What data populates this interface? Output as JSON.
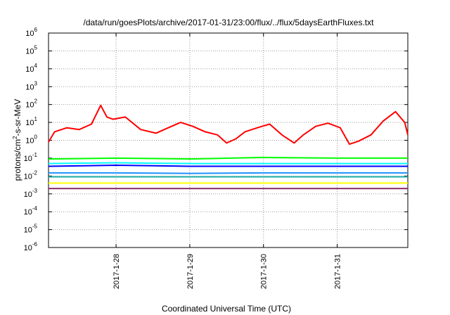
{
  "chart_data": {
    "type": "line",
    "title": "/data/run/goesPlots/archive/2017-01-31/23:00/flux/../flux/5daysEarthFluxes.txt",
    "xlabel": "Coordinated Universal Time (UTC)",
    "ylabel_parts": {
      "before": "protons/cm",
      "sup": "2",
      "after": "-s-sr-MeV"
    },
    "yscale": "log",
    "ylim": [
      1e-06,
      1000000.0
    ],
    "ytick_labels": [
      {
        "base": "10",
        "exp": "-6",
        "value": 1e-06
      },
      {
        "base": "10",
        "exp": "-5",
        "value": 1e-05
      },
      {
        "base": "10",
        "exp": "-4",
        "value": 0.0001
      },
      {
        "base": "10",
        "exp": "-3",
        "value": 0.001
      },
      {
        "base": "10",
        "exp": "-2",
        "value": 0.01
      },
      {
        "base": "10",
        "exp": "-1",
        "value": 0.1
      },
      {
        "base": "10",
        "exp": "0",
        "value": 1
      },
      {
        "base": "10",
        "exp": "1",
        "value": 10
      },
      {
        "base": "10",
        "exp": "2",
        "value": 100
      },
      {
        "base": "10",
        "exp": "3",
        "value": 1000
      },
      {
        "base": "10",
        "exp": "4",
        "value": 10000
      },
      {
        "base": "10",
        "exp": "5",
        "value": 100000
      },
      {
        "base": "10",
        "exp": "6",
        "value": 1000000
      }
    ],
    "xlim": [
      "2017-01-27 02:00",
      "2017-01-31 23:00"
    ],
    "xtick_labels": [
      {
        "label": "2017-1-28",
        "x": "2017-01-28 00:00"
      },
      {
        "label": "2017-1-29",
        "x": "2017-01-29 00:00"
      },
      {
        "label": "2017-1-30",
        "x": "2017-01-30 00:00"
      },
      {
        "label": "2017-1-31",
        "x": "2017-01-31 00:00"
      }
    ],
    "grid": true,
    "series": [
      {
        "color": "#ff0000",
        "x": [
          "2017-01-27 02:00",
          "2017-01-27 04:00",
          "2017-01-27 08:00",
          "2017-01-27 12:00",
          "2017-01-27 16:00",
          "2017-01-27 19:00",
          "2017-01-27 21:00",
          "2017-01-27 23:00",
          "2017-01-28 03:00",
          "2017-01-28 08:00",
          "2017-01-28 13:00",
          "2017-01-28 17:00",
          "2017-01-28 21:00",
          "2017-01-29 01:00",
          "2017-01-29 05:00",
          "2017-01-29 09:00",
          "2017-01-29 12:00",
          "2017-01-29 15:00",
          "2017-01-29 18:00",
          "2017-01-29 22:00",
          "2017-01-30 02:00",
          "2017-01-30 06:00",
          "2017-01-30 10:00",
          "2017-01-30 13:00",
          "2017-01-30 17:00",
          "2017-01-30 21:00",
          "2017-01-31 01:00",
          "2017-01-31 04:00",
          "2017-01-31 07:00",
          "2017-01-31 11:00",
          "2017-01-31 15:00",
          "2017-01-31 19:00",
          "2017-01-31 22:00",
          "2017-01-31 23:00"
        ],
        "values": [
          0.8,
          3,
          5,
          4,
          8,
          90,
          20,
          15,
          20,
          4,
          2.5,
          5,
          10,
          6,
          3,
          2,
          0.7,
          1.2,
          3,
          5,
          8,
          2,
          0.7,
          2,
          6,
          9,
          5,
          0.6,
          0.9,
          2,
          12,
          40,
          10,
          2
        ]
      },
      {
        "color": "#00ff00",
        "x": [
          "2017-01-27 02:00",
          "2017-01-28 00:00",
          "2017-01-29 00:00",
          "2017-01-30 00:00",
          "2017-01-31 00:00",
          "2017-01-31 23:00"
        ],
        "values": [
          0.09,
          0.1,
          0.09,
          0.11,
          0.1,
          0.1
        ]
      },
      {
        "color": "#00ffff",
        "x": [
          "2017-01-27 02:00",
          "2017-01-28 00:00",
          "2017-01-29 00:00",
          "2017-01-30 00:00",
          "2017-01-31 00:00",
          "2017-01-31 23:00"
        ],
        "values": [
          0.05,
          0.055,
          0.05,
          0.05,
          0.05,
          0.05
        ]
      },
      {
        "color": "#0000ff",
        "x": [
          "2017-01-27 02:00",
          "2017-01-28 00:00",
          "2017-01-29 00:00",
          "2017-01-30 00:00",
          "2017-01-31 00:00",
          "2017-01-31 23:00"
        ],
        "values": [
          0.035,
          0.04,
          0.035,
          0.035,
          0.035,
          0.035
        ]
      },
      {
        "color": "#1e90ff",
        "x": [
          "2017-01-27 02:00",
          "2017-01-28 00:00",
          "2017-01-29 00:00",
          "2017-01-30 00:00",
          "2017-01-31 00:00",
          "2017-01-31 23:00"
        ],
        "values": [
          0.015,
          0.015,
          0.014,
          0.015,
          0.015,
          0.015
        ]
      },
      {
        "color": "#20b2aa",
        "x": [
          "2017-01-27 02:00",
          "2017-01-28 00:00",
          "2017-01-29 00:00",
          "2017-01-30 00:00",
          "2017-01-31 00:00",
          "2017-01-31 23:00"
        ],
        "values": [
          0.009,
          0.009,
          0.009,
          0.009,
          0.009,
          0.009
        ]
      },
      {
        "color": "#ffff00",
        "x": [
          "2017-01-27 02:00",
          "2017-01-28 00:00",
          "2017-01-29 00:00",
          "2017-01-30 00:00",
          "2017-01-31 00:00",
          "2017-01-31 23:00"
        ],
        "values": [
          0.004,
          0.004,
          0.004,
          0.004,
          0.004,
          0.004
        ]
      },
      {
        "color": "#8b2e6b",
        "x": [
          "2017-01-27 02:00",
          "2017-01-28 00:00",
          "2017-01-29 00:00",
          "2017-01-30 00:00",
          "2017-01-31 00:00",
          "2017-01-31 23:00"
        ],
        "values": [
          0.002,
          0.002,
          0.002,
          0.002,
          0.002,
          0.002
        ]
      }
    ]
  }
}
